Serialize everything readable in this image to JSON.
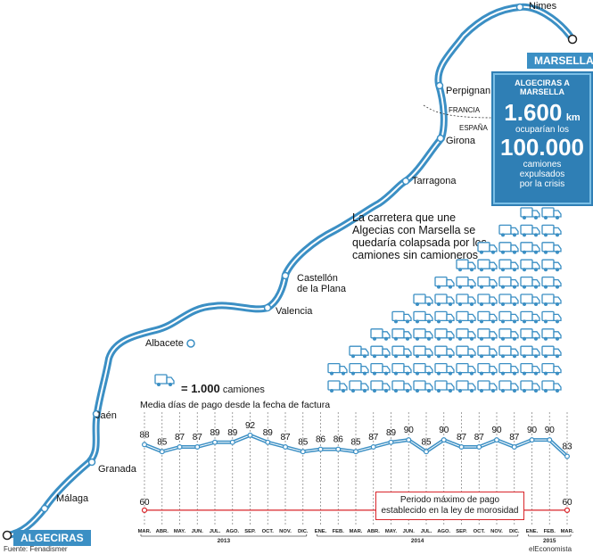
{
  "route": {
    "origin_tag": "ALGECIRAS",
    "destination_tag": "MARSELLA",
    "cities": [
      {
        "key": "nimes",
        "name": "Nimes"
      },
      {
        "key": "perpignan",
        "name": "Perpignan"
      },
      {
        "key": "girona",
        "name": "Girona"
      },
      {
        "key": "tarragona",
        "name": "Tarragona"
      },
      {
        "key": "castellon",
        "name": "Castellón\nde la Plana"
      },
      {
        "key": "valencia",
        "name": "Valencia"
      },
      {
        "key": "albacete",
        "name": "Albacete"
      },
      {
        "key": "jaen",
        "name": "Jaén"
      },
      {
        "key": "granada",
        "name": "Granada"
      },
      {
        "key": "malaga",
        "name": "Málaga"
      }
    ],
    "border_labels": {
      "north": "FRANCIA",
      "south": "ESPAÑA"
    },
    "colors": {
      "road": "#3b8fc4",
      "road_core": "#ffffff",
      "accent": "#2f7fb5",
      "max_line": "#d9252a"
    }
  },
  "infobox": {
    "header": "ALGECIRAS A MARSELLA",
    "distance_value": "1.600",
    "distance_unit": "km",
    "line1": "ocuparían los",
    "trucks_value": "100.000",
    "line2": "camiones",
    "line3": "expulsados",
    "line4": "por la crisis"
  },
  "headline": "La carretera que une Algecias con Marsella se quedaría colapsada por los camiones sin camioneros",
  "legend": {
    "icon": "truck-icon",
    "value": "= 1.000",
    "unit": "camiones"
  },
  "chart_data": {
    "type": "line",
    "title": "Media días de pago desde la fecha de factura",
    "x": [
      "MAR.",
      "ABR.",
      "MAY.",
      "JUN.",
      "JUL.",
      "AGO.",
      "SEP.",
      "OCT.",
      "NOV.",
      "DIC.",
      "ENE.",
      "FEB.",
      "MAR.",
      "ABR.",
      "MAY.",
      "JUN.",
      "JUL.",
      "AGO.",
      "SEP.",
      "OCT.",
      "NOV.",
      "DIC.",
      "ENE.",
      "FEB.",
      "MAR."
    ],
    "years": [
      {
        "label": "2013",
        "start": 0,
        "end": 9
      },
      {
        "label": "2014",
        "start": 10,
        "end": 21
      },
      {
        "label": "2015",
        "start": 22,
        "end": 24
      }
    ],
    "series": [
      {
        "values": [
          88,
          85,
          87,
          87,
          89,
          89,
          92,
          89,
          87,
          85,
          86,
          86,
          85,
          87,
          89,
          90,
          85,
          90,
          87,
          87,
          90,
          87,
          90,
          90,
          83
        ]
      },
      {
        "values": [
          60,
          60,
          60,
          60,
          60,
          60,
          60,
          60,
          60,
          60,
          60,
          60,
          60,
          60,
          60,
          60,
          60,
          60,
          60,
          60,
          60,
          60,
          60,
          60,
          60
        ]
      }
    ],
    "labeled_points_line2": [
      0,
      24
    ],
    "annotation": "Periodo máximo de pago\nestablecido en la ley de morosidad",
    "ylim": [
      55,
      95
    ],
    "grid": "vertical dashed"
  },
  "footer": {
    "source": "Fuente: Fenadismer",
    "credit": "elEconomista"
  }
}
